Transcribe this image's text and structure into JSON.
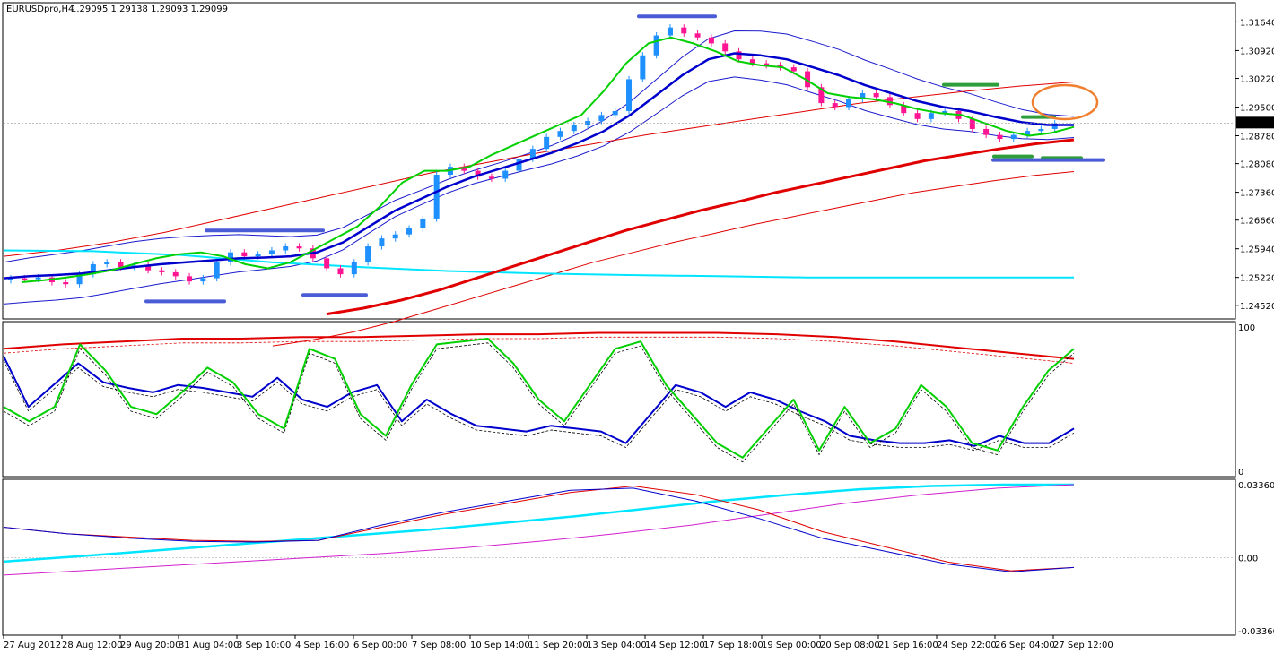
{
  "window": {
    "title": "EURUSDpro,H4",
    "ohlc": "1.29095 1.29138 1.29093 1.29099"
  },
  "colors": {
    "bull": "#1e90ff",
    "bear": "#ff1493",
    "ema_fast": "#00d000",
    "ema_mid": "#0000cd",
    "ema_slow": "#e00000",
    "cyan": "#00e5ff",
    "band": "#1a1acd",
    "sr_blue": "#4a5bd6",
    "sr_green": "#2e9e3a",
    "circle": "#f08030",
    "price_tag_bg": "#000000"
  },
  "chart_data": [
    {
      "type": "line",
      "name": "price-panel",
      "ylim": [
        1.242,
        1.321
      ],
      "y_ticks": [
        "1.31640",
        "1.30920",
        "1.30220",
        "1.29500",
        "1.28780",
        "1.28080",
        "1.27360",
        "1.26660",
        "1.25940",
        "1.25220",
        "1.24520"
      ],
      "y_tick_values": [
        1.3164,
        1.3092,
        1.3022,
        1.295,
        1.2878,
        1.2808,
        1.2736,
        1.2666,
        1.2594,
        1.2522,
        1.2452
      ],
      "current_price": "1.29099",
      "x_ticks": [
        "27 Aug 2012",
        "28 Aug 12:00",
        "29 Aug 20:00",
        "31 Aug 04:00",
        "3 Sep 10:00",
        "4 Sep 16:00",
        "6 Sep 00:00",
        "7 Sep 08:00",
        "10 Sep 14:00",
        "11 Sep 20:00",
        "13 Sep 04:00",
        "14 Sep 12:00",
        "17 Sep 18:00",
        "19 Sep 00:00",
        "20 Sep 08:00",
        "21 Sep 16:00",
        "24 Sep 22:00",
        "26 Sep 04:00",
        "27 Sep 12:00"
      ],
      "close_series": [
        1.252,
        1.2518,
        1.2522,
        1.251,
        1.2505,
        1.253,
        1.2555,
        1.256,
        1.2548,
        1.2552,
        1.254,
        1.2535,
        1.2525,
        1.2512,
        1.252,
        1.256,
        1.2585,
        1.2575,
        1.258,
        1.259,
        1.26,
        1.2595,
        1.257,
        1.2545,
        1.253,
        1.256,
        1.26,
        1.262,
        1.263,
        1.2645,
        1.267,
        1.278,
        1.28,
        1.279,
        1.2775,
        1.277,
        1.279,
        1.282,
        1.2845,
        1.2875,
        1.289,
        1.2905,
        1.2915,
        1.293,
        1.294,
        1.302,
        1.308,
        1.313,
        1.315,
        1.3135,
        1.3125,
        1.311,
        1.309,
        1.307,
        1.306,
        1.3055,
        1.305,
        1.304,
        1.3,
        1.296,
        1.295,
        1.297,
        1.2985,
        1.2975,
        1.2955,
        1.2935,
        1.292,
        1.2935,
        1.294,
        1.292,
        1.2895,
        1.288,
        1.287,
        1.288,
        1.289,
        1.2895,
        1.2909
      ],
      "ema_fast": [
        1.251,
        1.2515,
        1.2522,
        1.253,
        1.254,
        1.2555,
        1.257,
        1.258,
        1.2585,
        1.2575,
        1.2555,
        1.2545,
        1.256,
        1.259,
        1.262,
        1.265,
        1.27,
        1.276,
        1.279,
        1.279,
        1.28,
        1.283,
        1.2855,
        1.288,
        1.2905,
        1.293,
        1.299,
        1.306,
        1.311,
        1.3125,
        1.311,
        1.309,
        1.3065,
        1.3055,
        1.305,
        1.302,
        1.2985,
        1.2975,
        1.297,
        1.296,
        1.2945,
        1.2935,
        1.293,
        1.291,
        1.289,
        1.2878,
        1.2885,
        1.29
      ],
      "ema_mid": [
        1.252,
        1.2525,
        1.2528,
        1.2532,
        1.254,
        1.2548,
        1.2555,
        1.256,
        1.2565,
        1.257,
        1.2572,
        1.2575,
        1.2585,
        1.261,
        1.265,
        1.269,
        1.272,
        1.275,
        1.2775,
        1.2795,
        1.2815,
        1.2835,
        1.286,
        1.289,
        1.293,
        1.298,
        1.303,
        1.307,
        1.3085,
        1.308,
        1.307,
        1.305,
        1.303,
        1.3005,
        1.2985,
        1.2965,
        1.295,
        1.294,
        1.2925,
        1.2912,
        1.2905,
        1.2905
      ],
      "ema_slow_thick": [
        1.243,
        1.2445,
        1.2465,
        1.249,
        1.252,
        1.255,
        1.258,
        1.261,
        1.264,
        1.2665,
        1.269,
        1.2712,
        1.2735,
        1.2755,
        1.2775,
        1.2795,
        1.2815,
        1.283,
        1.2845,
        1.2858,
        1.2868
      ],
      "cyan_line": [
        1.259,
        1.2588,
        1.2578,
        1.256,
        1.2548,
        1.2538,
        1.2532,
        1.2528,
        1.2525,
        1.2522,
        1.2522,
        1.2522,
        1.2522
      ],
      "sr_levels": [
        {
          "price": 1.3178,
          "color": "blue"
        },
        {
          "price": 1.264,
          "color": "blue"
        },
        {
          "price": 1.2462,
          "color": "blue"
        },
        {
          "price": 1.2478,
          "color": "blue"
        },
        {
          "price": 1.3006,
          "color": "green"
        },
        {
          "price": 1.2925,
          "color": "green"
        },
        {
          "price": 1.2826,
          "color": "green"
        },
        {
          "price": 1.2822,
          "color": "green"
        },
        {
          "price": 1.2817,
          "color": "blue"
        }
      ]
    },
    {
      "type": "line",
      "name": "stochastic-panel",
      "ylim": [
        0,
        100
      ],
      "y_ticks": [
        "100",
        "0"
      ],
      "series": [
        {
          "name": "red",
          "values": [
            85,
            88,
            90,
            92,
            92,
            93,
            93,
            94,
            95,
            95,
            96,
            96,
            96,
            95,
            93,
            90,
            86,
            82,
            78
          ]
        },
        {
          "name": "blue",
          "values": [
            80,
            45,
            60,
            75,
            62,
            58,
            55,
            60,
            58,
            55,
            52,
            65,
            50,
            45,
            55,
            60,
            35,
            50,
            40,
            32,
            30,
            28,
            32,
            30,
            28,
            20,
            40,
            60,
            55,
            45,
            55,
            50,
            42,
            35,
            25,
            22,
            20,
            20,
            22,
            18,
            25,
            20,
            20,
            30
          ]
        },
        {
          "name": "green",
          "values": [
            45,
            35,
            45,
            88,
            70,
            45,
            40,
            55,
            72,
            62,
            40,
            30,
            85,
            78,
            40,
            25,
            60,
            88,
            90,
            92,
            75,
            50,
            35,
            60,
            85,
            90,
            60,
            40,
            20,
            10,
            30,
            50,
            15,
            45,
            20,
            30,
            60,
            45,
            20,
            15,
            45,
            70,
            85
          ]
        }
      ]
    },
    {
      "type": "line",
      "name": "macd-panel",
      "ylim": [
        -0.0336,
        0.0336
      ],
      "y_ticks": [
        "0.03360",
        "0.00",
        "-0.03360"
      ],
      "series": [
        {
          "name": "cyan",
          "values": [
            -0.0018,
            0.0005,
            0.003,
            0.0055,
            0.008,
            0.0105,
            0.013,
            0.016,
            0.019,
            0.0225,
            0.026,
            0.029,
            0.0315,
            0.033,
            0.0336,
            0.0336
          ]
        },
        {
          "name": "magenta",
          "values": [
            -0.008,
            -0.006,
            -0.004,
            -0.002,
            0.0,
            0.002,
            0.0045,
            0.0075,
            0.011,
            0.015,
            0.02,
            0.025,
            0.029,
            0.032,
            0.0336
          ]
        },
        {
          "name": "red",
          "values": [
            0.014,
            0.011,
            0.0095,
            0.008,
            0.0075,
            0.008,
            0.014,
            0.02,
            0.025,
            0.03,
            0.033,
            0.029,
            0.022,
            0.012,
            0.005,
            -0.002,
            -0.006,
            -0.0045
          ]
        },
        {
          "name": "blue",
          "values": [
            0.014,
            0.011,
            0.009,
            0.0075,
            0.0072,
            0.008,
            0.015,
            0.021,
            0.026,
            0.031,
            0.032,
            0.026,
            0.018,
            0.009,
            0.003,
            -0.003,
            -0.0065,
            -0.0045
          ]
        }
      ]
    }
  ]
}
